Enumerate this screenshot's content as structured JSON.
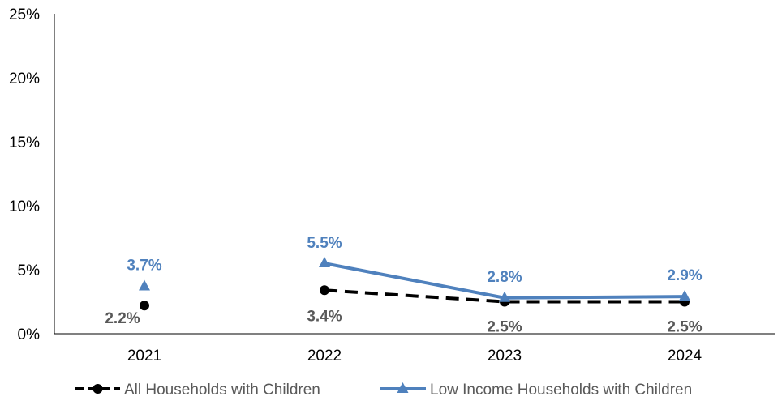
{
  "chart_data": {
    "type": "line",
    "title": "",
    "xlabel": "",
    "ylabel": "",
    "categories": [
      "2021",
      "2022",
      "2023",
      "2024"
    ],
    "ylim": [
      0,
      25
    ],
    "yticks": [
      0,
      5,
      10,
      15,
      20,
      25
    ],
    "ytick_labels": [
      "0%",
      "5%",
      "10%",
      "15%",
      "20%",
      "25%"
    ],
    "grid": false,
    "legend_position": "bottom",
    "series": [
      {
        "name": "All Households with Children",
        "values": [
          2.2,
          3.4,
          2.5,
          2.5
        ],
        "labels": [
          "2.2%",
          "3.4%",
          "2.5%",
          "2.5%"
        ],
        "color": "#000000",
        "label_color": "#595959",
        "line_style": "dashed",
        "marker": "circle",
        "connected_from_index": 1
      },
      {
        "name": "Low Income Households with Children",
        "values": [
          3.7,
          5.5,
          2.8,
          2.9
        ],
        "labels": [
          "3.7%",
          "5.5%",
          "2.8%",
          "2.9%"
        ],
        "color": "#4f81bd",
        "label_color": "#4f81bd",
        "line_style": "solid",
        "marker": "triangle",
        "connected_from_index": 1
      }
    ]
  }
}
